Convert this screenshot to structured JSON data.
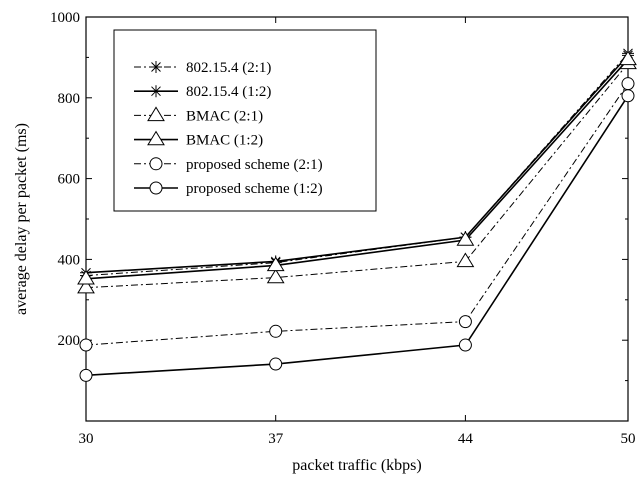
{
  "chart_data": {
    "type": "line",
    "title": "",
    "xlabel": "packet traffic (kbps)",
    "ylabel": "average delay per packet (ms)",
    "x": [
      30,
      37,
      44,
      50
    ],
    "xlim": [
      30,
      50
    ],
    "ylim": [
      0,
      1000
    ],
    "xticks": [
      30,
      37,
      44,
      50
    ],
    "yticks": [
      200,
      400,
      600,
      800,
      1000
    ],
    "grid": false,
    "legend_position": "top-left",
    "series": [
      {
        "name": "802.15.4 (2:1)",
        "values": [
          360,
          392,
          455,
          910
        ],
        "marker": "star",
        "dash": "dashdot"
      },
      {
        "name": "802.15.4 (1:2)",
        "values": [
          367,
          395,
          455,
          905
        ],
        "marker": "star",
        "dash": "solid"
      },
      {
        "name": "BMAC (2:1)",
        "values": [
          330,
          355,
          395,
          885
        ],
        "marker": "triangle",
        "dash": "dashdot"
      },
      {
        "name": "BMAC (1:2)",
        "values": [
          352,
          385,
          448,
          895
        ],
        "marker": "triangle",
        "dash": "solid"
      },
      {
        "name": "proposed scheme (2:1)",
        "values": [
          188,
          222,
          246,
          835
        ],
        "marker": "circle",
        "dash": "dashdot"
      },
      {
        "name": "proposed scheme (1:2)",
        "values": [
          113,
          141,
          188,
          805
        ],
        "marker": "circle",
        "dash": "solid"
      }
    ]
  }
}
